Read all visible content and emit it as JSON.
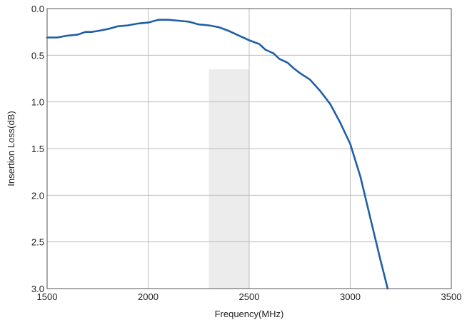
{
  "chart_data": {
    "type": "line",
    "title": "",
    "xlabel": "Frequency(MHz)",
    "ylabel": "Insertion Loss(dB)",
    "xlim": [
      1500,
      3500
    ],
    "ylim": [
      0.0,
      3.0
    ],
    "y_inverted": true,
    "grid": true,
    "legend": "none",
    "x_ticks": [
      "1500",
      "2000",
      "2500",
      "3000",
      "3500"
    ],
    "y_ticks": [
      "0.0",
      "0.5",
      "1.0",
      "1.5",
      "2.0",
      "2.5",
      "3.0"
    ],
    "shaded_band": {
      "x_range": [
        2300,
        2500
      ],
      "y_range": [
        0.65,
        3.0
      ],
      "color": "#ececec"
    },
    "series": [
      {
        "color": "#1f5fa8",
        "points": [
          [
            1500,
            0.31
          ],
          [
            1550,
            0.31
          ],
          [
            1600,
            0.29
          ],
          [
            1650,
            0.28
          ],
          [
            1690,
            0.25
          ],
          [
            1720,
            0.25
          ],
          [
            1750,
            0.24
          ],
          [
            1800,
            0.22
          ],
          [
            1850,
            0.19
          ],
          [
            1900,
            0.18
          ],
          [
            1950,
            0.16
          ],
          [
            2000,
            0.15
          ],
          [
            2050,
            0.12
          ],
          [
            2100,
            0.12
          ],
          [
            2150,
            0.13
          ],
          [
            2200,
            0.14
          ],
          [
            2250,
            0.17
          ],
          [
            2300,
            0.18
          ],
          [
            2350,
            0.2
          ],
          [
            2400,
            0.24
          ],
          [
            2450,
            0.29
          ],
          [
            2500,
            0.34
          ],
          [
            2550,
            0.38
          ],
          [
            2580,
            0.44
          ],
          [
            2620,
            0.48
          ],
          [
            2650,
            0.54
          ],
          [
            2690,
            0.58
          ],
          [
            2720,
            0.64
          ],
          [
            2750,
            0.69
          ],
          [
            2800,
            0.76
          ],
          [
            2850,
            0.88
          ],
          [
            2900,
            1.02
          ],
          [
            2950,
            1.22
          ],
          [
            3000,
            1.45
          ],
          [
            3050,
            1.8
          ],
          [
            3100,
            2.25
          ],
          [
            3150,
            2.7
          ],
          [
            3185,
            3.0
          ]
        ]
      }
    ]
  }
}
